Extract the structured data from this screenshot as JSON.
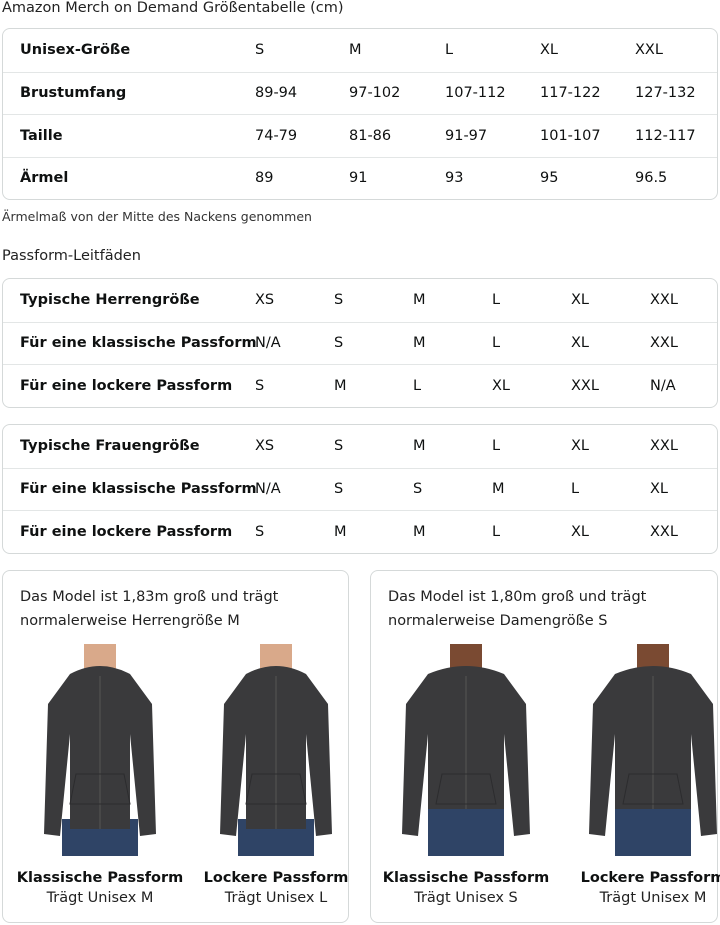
{
  "size_chart": {
    "title": "Amazon Merch on Demand Größentabelle (cm)",
    "rows": [
      {
        "label": "Unisex-Größe",
        "values": [
          "S",
          "M",
          "L",
          "XL",
          "XXL"
        ]
      },
      {
        "label": "Brustumfang",
        "values": [
          "89-94",
          "97-102",
          "107-112",
          "117-122",
          "127-132"
        ]
      },
      {
        "label": "Taille",
        "values": [
          "74-79",
          "81-86",
          "91-97",
          "101-107",
          "112-117"
        ]
      },
      {
        "label": "Ärmel",
        "values": [
          "89",
          "91",
          "93",
          "95",
          "96.5"
        ]
      }
    ],
    "note": "Ärmelmaß von der Mitte des Nackens genommen"
  },
  "fit_guide": {
    "title": "Passform-Leitfäden",
    "men": [
      {
        "label": "Typische Herrengröße",
        "values": [
          "XS",
          "S",
          "M",
          "L",
          "XL",
          "XXL"
        ]
      },
      {
        "label": "Für eine klassische Passform",
        "values": [
          "N/A",
          "S",
          "M",
          "L",
          "XL",
          "XXL"
        ]
      },
      {
        "label": "Für eine lockere Passform",
        "values": [
          "S",
          "M",
          "L",
          "XL",
          "XXL",
          "N/A"
        ]
      }
    ],
    "women": [
      {
        "label": "Typische Frauengröße",
        "values": [
          "XS",
          "S",
          "M",
          "L",
          "XL",
          "XXL"
        ]
      },
      {
        "label": "Für eine klassische Passform",
        "values": [
          "N/A",
          "S",
          "S",
          "M",
          "L",
          "XL"
        ]
      },
      {
        "label": "Für eine lockere Passform",
        "values": [
          "S",
          "M",
          "M",
          "L",
          "XL",
          "XXL"
        ]
      }
    ]
  },
  "models": [
    {
      "line1": "Das Model ist 1,83m groß und trägt",
      "line2": "normalerweise Herrengröße M",
      "fits": [
        {
          "title": "Klassische Passform",
          "sub": "Trägt Unisex M"
        },
        {
          "title": "Lockere Passform",
          "sub": "Trägt Unisex L"
        }
      ]
    },
    {
      "line1": "Das Model ist 1,80m groß und trägt",
      "line2": "normalerweise Damengröße S",
      "fits": [
        {
          "title": "Klassische Passform",
          "sub": "Trägt Unisex S"
        },
        {
          "title": "Lockere Passform",
          "sub": "Trägt Unisex M"
        }
      ]
    }
  ],
  "colors": {
    "hoodie": "#3a3a3c",
    "jeans": "#2f4466",
    "border": "#d5d9d9"
  }
}
